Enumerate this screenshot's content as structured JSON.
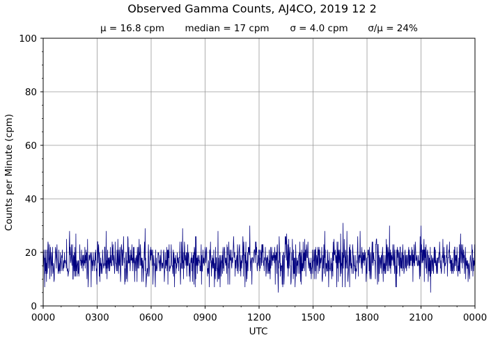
{
  "chart_data": {
    "type": "line",
    "title": "Observed Gamma Counts, AJ4CO, 2019 12 2",
    "stats": {
      "mean": "μ = 16.8 cpm",
      "median": "median = 17 cpm",
      "sigma": "σ = 4.0 cpm",
      "ratio": "σ/μ = 24%"
    },
    "xlabel": "UTC",
    "ylabel": "Counts per Minute (cpm)",
    "x_ticks": [
      "0000",
      "0300",
      "0600",
      "0900",
      "1200",
      "1500",
      "1800",
      "2100",
      "0000"
    ],
    "x_range_minutes": [
      0,
      1440
    ],
    "ylim": [
      0,
      100
    ],
    "y_ticks": [
      0,
      20,
      40,
      60,
      80,
      100
    ],
    "grid": true,
    "line_color": "#00007f",
    "series": [
      {
        "sampling_interval_minutes": 1,
        "mean": 16.8,
        "median": 17,
        "std": 4.0,
        "min": 5,
        "max": 31,
        "notable_peaks": [
          {
            "x": 340,
            "y": 29
          },
          {
            "x": 465,
            "y": 29
          },
          {
            "x": 689,
            "y": 30
          },
          {
            "x": 1000,
            "y": 31
          },
          {
            "x": 1155,
            "y": 30
          },
          {
            "x": 1260,
            "y": 30
          }
        ],
        "notable_dips": [
          {
            "x": 784,
            "y": 5
          },
          {
            "x": 1292,
            "y": 5
          }
        ]
      }
    ]
  }
}
